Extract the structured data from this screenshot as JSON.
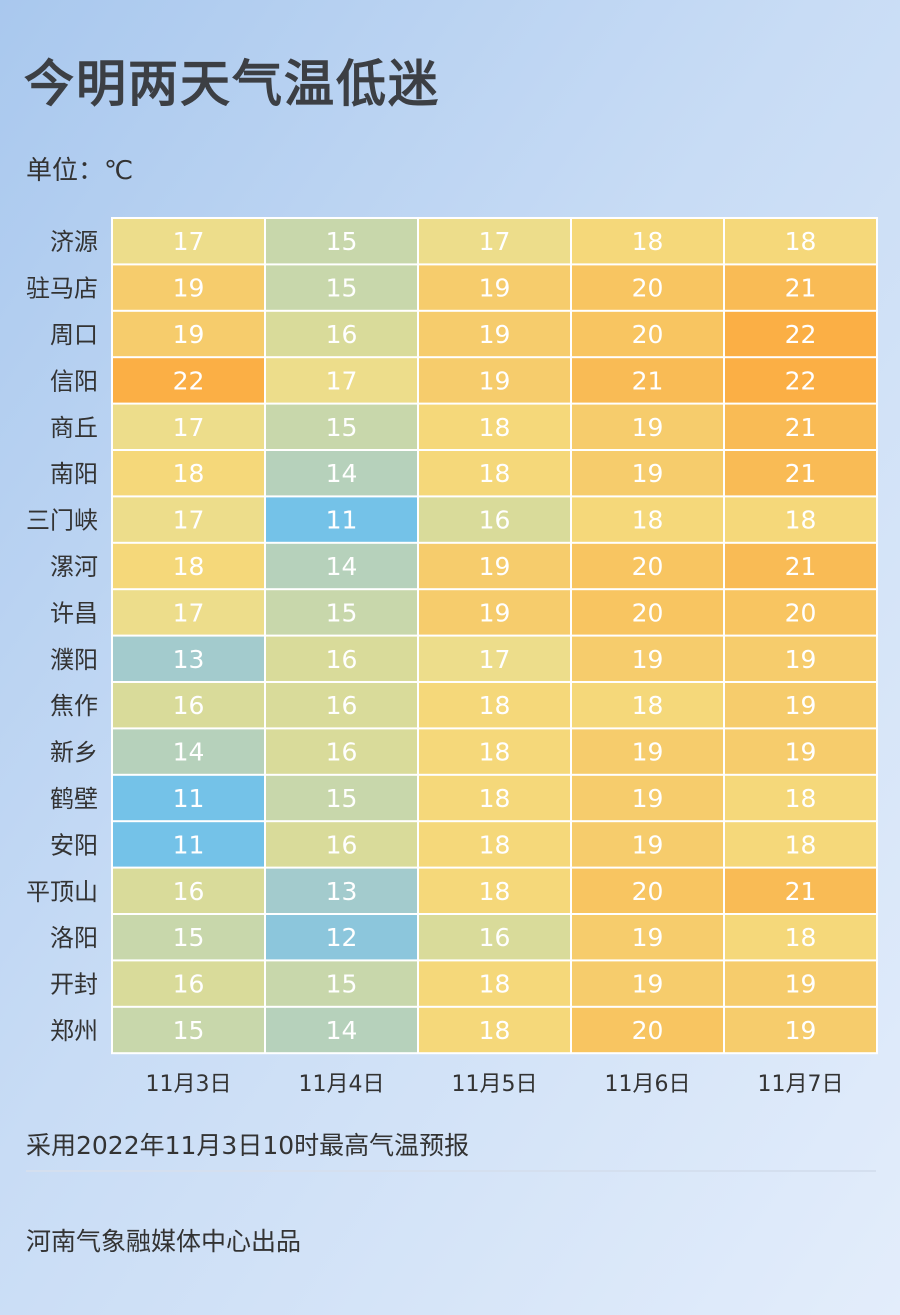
{
  "title": "今明两天气温低迷",
  "unit": "单位：℃",
  "footnote": "采用2022年11月3日10时最高气温预报",
  "credit": "河南气象融媒体中心出品",
  "chart_data": {
    "type": "heatmap",
    "title": "今明两天气温低迷",
    "unit": "℃",
    "columns": [
      "11月3日",
      "11月4日",
      "11月5日",
      "11月6日",
      "11月7日"
    ],
    "rows": [
      "济源",
      "驻马店",
      "周口",
      "信阳",
      "商丘",
      "南阳",
      "三门峡",
      "漯河",
      "许昌",
      "濮阳",
      "焦作",
      "新乡",
      "鹤壁",
      "安阳",
      "平顶山",
      "洛阳",
      "开封",
      "郑州"
    ],
    "values": [
      [
        17,
        15,
        17,
        18,
        18
      ],
      [
        19,
        15,
        19,
        20,
        21
      ],
      [
        19,
        16,
        19,
        20,
        22
      ],
      [
        22,
        17,
        19,
        21,
        22
      ],
      [
        17,
        15,
        18,
        19,
        21
      ],
      [
        18,
        14,
        18,
        19,
        21
      ],
      [
        17,
        11,
        16,
        18,
        18
      ],
      [
        18,
        14,
        19,
        20,
        21
      ],
      [
        17,
        15,
        19,
        20,
        20
      ],
      [
        13,
        16,
        17,
        19,
        19
      ],
      [
        16,
        16,
        18,
        18,
        19
      ],
      [
        14,
        16,
        18,
        19,
        19
      ],
      [
        11,
        15,
        18,
        19,
        18
      ],
      [
        11,
        16,
        18,
        19,
        18
      ],
      [
        16,
        13,
        18,
        20,
        21
      ],
      [
        15,
        12,
        16,
        19,
        18
      ],
      [
        16,
        15,
        18,
        19,
        19
      ],
      [
        15,
        14,
        18,
        20,
        19
      ]
    ],
    "color_range": [
      11,
      22
    ],
    "colors": {
      "11": "#74c2e8",
      "12": "#8cc6dc",
      "13": "#a3cbcd",
      "14": "#b6d1bb",
      "15": "#c8d7ab",
      "16": "#d9db9a",
      "17": "#eddd8b",
      "18": "#f5d87a",
      "19": "#f6cc6c",
      "20": "#f8c561",
      "21": "#f9bb55",
      "22": "#fbaf45"
    },
    "grid": true,
    "legend": "none"
  }
}
